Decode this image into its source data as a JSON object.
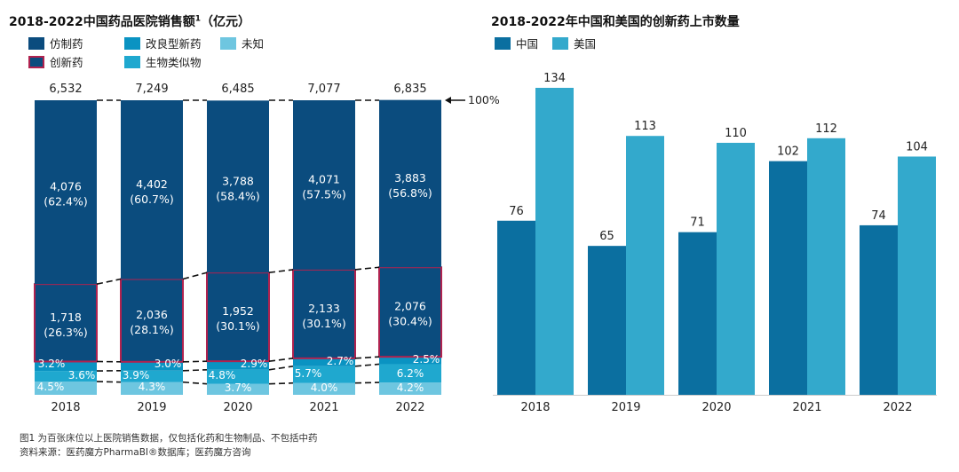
{
  "left_chart": {
    "title": "2018-2022中国药品医院销售额",
    "title_sup": "1",
    "title_unit": "（亿元）",
    "legend": [
      {
        "key": "generic",
        "label": "仿制药",
        "color": "#0b4c7e"
      },
      {
        "key": "improved",
        "label": "改良型新药",
        "color": "#0a93c2"
      },
      {
        "key": "unknown",
        "label": "未知",
        "color": "#6ec6e0"
      },
      {
        "key": "innovative",
        "label": "创新药",
        "color": "#0b4c7e",
        "border": "#b0224f"
      },
      {
        "key": "biosimilar",
        "label": "生物类似物",
        "color": "#1fa8cf"
      }
    ],
    "hundred_label": "100%",
    "footnote": "图1 为百张床位以上医院销售数据，仅包括化药和生物制品、不包括中药",
    "source": "资料来源：医药魔方PharmaBI®数据库；医药魔方咨询"
  },
  "right_chart": {
    "title": "2018-2022年中国和美国的创新药上市数量",
    "legend": [
      {
        "label": "中国",
        "color": "#0b6fa0"
      },
      {
        "label": "美国",
        "color": "#33a9cc"
      }
    ]
  },
  "chart_data": [
    {
      "type": "bar",
      "stacked": true,
      "normalized": true,
      "title": "2018-2022中国药品医院销售额（亿元）",
      "categories": [
        "2018",
        "2019",
        "2020",
        "2021",
        "2022"
      ],
      "totals": [
        "6,532",
        "7,249",
        "6,485",
        "7,077",
        "6,835"
      ],
      "series": [
        {
          "name": "未知",
          "values": [
            4.5,
            4.3,
            3.7,
            4.0,
            4.2
          ],
          "labels": [
            "4.5%",
            "4.3%",
            "3.7%",
            "4.0%",
            "4.2%"
          ]
        },
        {
          "name": "生物类似物",
          "values": [
            3.6,
            3.9,
            4.8,
            5.7,
            6.2
          ],
          "labels": [
            "3.6%",
            "3.9%",
            "4.8%",
            "5.7%",
            "6.2%"
          ]
        },
        {
          "name": "改良型新药",
          "values": [
            3.2,
            3.0,
            2.9,
            2.7,
            2.5
          ],
          "labels": [
            "3.2%",
            "3.0%",
            "2.9%",
            "2.7%",
            "2.5%"
          ]
        },
        {
          "name": "创新药",
          "values": [
            26.3,
            28.1,
            30.1,
            30.1,
            30.4
          ],
          "labels": [
            "1,718",
            "2,036",
            "1,952",
            "2,133",
            "2,076"
          ],
          "sublabels": [
            "(26.3%)",
            "(28.1%)",
            "(30.1%)",
            "(30.1%)",
            "(30.4%)"
          ]
        },
        {
          "name": "仿制药",
          "values": [
            62.4,
            60.7,
            58.4,
            57.5,
            56.8
          ],
          "labels": [
            "4,076",
            "4,402",
            "3,788",
            "4,071",
            "3,883"
          ],
          "sublabels": [
            "(62.4%)",
            "(60.7%)",
            "(58.4%)",
            "(57.5%)",
            "(56.8%)"
          ]
        }
      ],
      "ylim": [
        0,
        100
      ]
    },
    {
      "type": "bar",
      "title": "2018-2022年中国和美国的创新药上市数量",
      "categories": [
        "2018",
        "2019",
        "2020",
        "2021",
        "2022"
      ],
      "series": [
        {
          "name": "中国",
          "values": [
            76,
            65,
            71,
            102,
            74
          ]
        },
        {
          "name": "美国",
          "values": [
            134,
            113,
            110,
            112,
            104
          ]
        }
      ],
      "ylim": [
        0,
        150
      ]
    }
  ]
}
